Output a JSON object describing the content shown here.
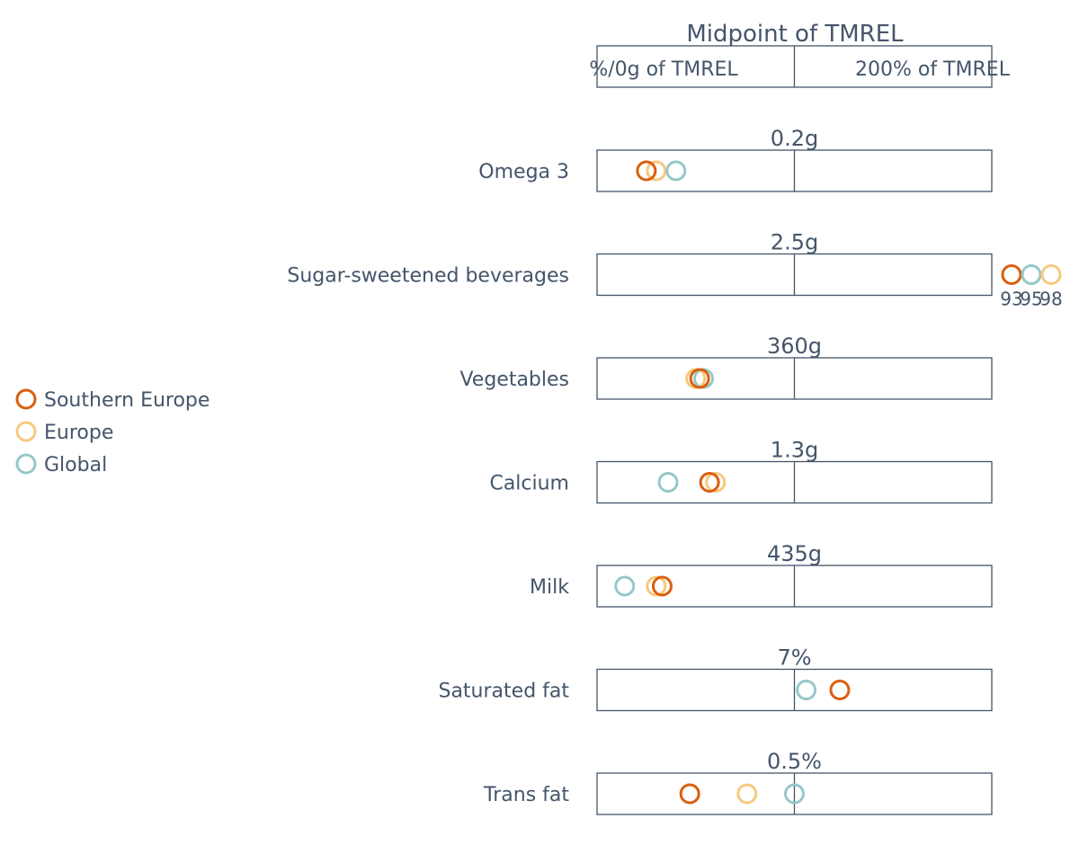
{
  "chart_data": {
    "type": "scatter",
    "header": {
      "title": "Midpoint of TMREL",
      "left_label": "%/0g of TMREL",
      "right_label": "200% of TMREL"
    },
    "x_axis_range": [
      0,
      200
    ],
    "x_axis_unit": "percent of TMREL",
    "legend": {
      "placement": "left"
    },
    "series": [
      {
        "name": "Southern Europe",
        "color": "#d95f0e"
      },
      {
        "name": "Europe",
        "color": "#f7c97e"
      },
      {
        "name": "Global",
        "color": "#96c8c8"
      }
    ],
    "rows": [
      {
        "label": "Omega 3",
        "tmrel": "0.2g",
        "values": {
          "Southern Europe": 25,
          "Europe": 30,
          "Global": 40
        },
        "overflow_labels": {}
      },
      {
        "label": "Sugar-sweetened beverages",
        "tmrel": "2.5g",
        "values": {
          "Southern Europe": 93,
          "Europe": 98,
          "Global": 95
        },
        "overflow": true,
        "overflow_labels": {
          "Southern Europe": "93",
          "Global": "95",
          "Europe": "98"
        }
      },
      {
        "label": "Vegetables",
        "tmrel": "360g",
        "values": {
          "Southern Europe": 52,
          "Europe": 50,
          "Global": 54
        },
        "overflow_labels": {}
      },
      {
        "label": "Calcium",
        "tmrel": "1.3g",
        "values": {
          "Southern Europe": 57,
          "Europe": 60,
          "Global": 36
        },
        "overflow_labels": {}
      },
      {
        "label": "Milk",
        "tmrel": "435g",
        "values": {
          "Southern Europe": 33,
          "Europe": 30,
          "Global": 14
        },
        "overflow_labels": {}
      },
      {
        "label": "Saturated fat",
        "tmrel": "7%",
        "values": {
          "Southern Europe": 123,
          "Global": 106
        },
        "overflow_labels": {}
      },
      {
        "label": "Trans fat",
        "tmrel": "0.5%",
        "values": {
          "Southern Europe": 47,
          "Europe": 76,
          "Global": 100
        },
        "overflow_labels": {}
      }
    ]
  }
}
